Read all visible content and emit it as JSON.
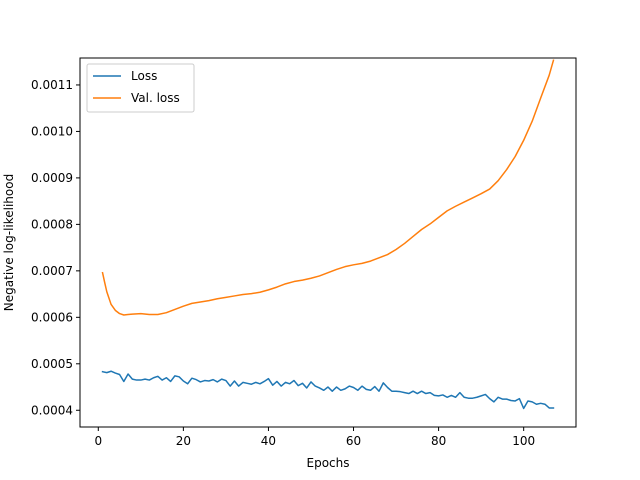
{
  "chart_data": {
    "type": "line",
    "title": "",
    "xlabel": "Epochs",
    "ylabel": "Negative log-likelihood",
    "xlim": [
      -4.3,
      112.3
    ],
    "ylim": [
      0.000364,
      0.001158
    ],
    "x_ticks": [
      0,
      20,
      40,
      60,
      80,
      100
    ],
    "x_tick_labels": [
      "0",
      "20",
      "40",
      "60",
      "80",
      "100"
    ],
    "y_ticks": [
      0.0004,
      0.0005,
      0.0006,
      0.0007,
      0.0008,
      0.0009,
      0.001,
      0.0011
    ],
    "y_tick_labels": [
      "0.0004",
      "0.0005",
      "0.0006",
      "0.0007",
      "0.0008",
      "0.0009",
      "0.0010",
      "0.0011"
    ],
    "grid": false,
    "legend_position": "top-left",
    "series": [
      {
        "name": "Loss",
        "color": "#1f77b4",
        "x": [
          1,
          2,
          3,
          4,
          5,
          6,
          7,
          8,
          9,
          10,
          11,
          12,
          13,
          14,
          15,
          16,
          17,
          18,
          19,
          20,
          21,
          22,
          23,
          24,
          25,
          26,
          27,
          28,
          29,
          30,
          31,
          32,
          33,
          34,
          35,
          36,
          37,
          38,
          39,
          40,
          41,
          42,
          43,
          44,
          45,
          46,
          47,
          48,
          49,
          50,
          51,
          52,
          53,
          54,
          55,
          56,
          57,
          58,
          59,
          60,
          61,
          62,
          63,
          64,
          65,
          66,
          67,
          68,
          69,
          70,
          71,
          72,
          73,
          74,
          75,
          76,
          77,
          78,
          79,
          80,
          81,
          82,
          83,
          84,
          85,
          86,
          87,
          88,
          89,
          90,
          91,
          92,
          93,
          94,
          95,
          96,
          97,
          98,
          99,
          100,
          101,
          102,
          103,
          104,
          105,
          106,
          107
        ],
        "values": [
          0.000483,
          0.000481,
          0.000484,
          0.00048,
          0.000477,
          0.000462,
          0.000478,
          0.000467,
          0.000465,
          0.000465,
          0.000467,
          0.000465,
          0.00047,
          0.000473,
          0.000465,
          0.00047,
          0.000462,
          0.000474,
          0.000472,
          0.000463,
          0.000457,
          0.000469,
          0.000466,
          0.000461,
          0.000464,
          0.000463,
          0.000466,
          0.000461,
          0.000467,
          0.000464,
          0.000452,
          0.000463,
          0.000452,
          0.00046,
          0.000458,
          0.000456,
          0.00046,
          0.000457,
          0.000462,
          0.000468,
          0.000454,
          0.000462,
          0.000452,
          0.00046,
          0.000457,
          0.000464,
          0.000453,
          0.000458,
          0.000448,
          0.000461,
          0.000452,
          0.000448,
          0.000443,
          0.00045,
          0.000441,
          0.00045,
          0.000443,
          0.000446,
          0.000452,
          0.000449,
          0.000443,
          0.000452,
          0.000445,
          0.000443,
          0.000451,
          0.000441,
          0.000459,
          0.000449,
          0.000441,
          0.000441,
          0.00044,
          0.000438,
          0.000436,
          0.000441,
          0.000436,
          0.000441,
          0.000436,
          0.000438,
          0.000432,
          0.000431,
          0.000433,
          0.000428,
          0.000432,
          0.000428,
          0.000438,
          0.000428,
          0.000426,
          0.000426,
          0.000428,
          0.000431,
          0.000434,
          0.000425,
          0.000418,
          0.000428,
          0.000424,
          0.000424,
          0.000421,
          0.00042,
          0.000425,
          0.000404,
          0.00042,
          0.000418,
          0.000413,
          0.000415,
          0.000413,
          0.000405,
          0.000405
        ]
      },
      {
        "name": "Val. loss",
        "color": "#ff7f0e",
        "x": [
          1,
          1.5,
          2,
          3,
          4,
          5,
          6,
          7,
          8,
          10,
          12,
          14,
          16,
          18,
          20,
          22,
          24,
          26,
          28,
          30,
          32,
          34,
          36,
          38,
          40,
          42,
          44,
          46,
          48,
          50,
          52,
          54,
          56,
          58,
          60,
          62,
          64,
          66,
          68,
          70,
          72,
          74,
          76,
          78,
          80,
          82,
          84,
          86,
          88,
          90,
          92,
          94,
          96,
          98,
          100,
          102,
          104,
          106,
          107
        ],
        "values": [
          0.000696,
          0.000675,
          0.000655,
          0.000628,
          0.000615,
          0.000608,
          0.000605,
          0.000606,
          0.000607,
          0.000608,
          0.000606,
          0.000606,
          0.00061,
          0.000617,
          0.000624,
          0.00063,
          0.000633,
          0.000636,
          0.00064,
          0.000643,
          0.000646,
          0.000649,
          0.000651,
          0.000654,
          0.000659,
          0.000665,
          0.000672,
          0.000677,
          0.00068,
          0.000684,
          0.000689,
          0.000696,
          0.000703,
          0.000709,
          0.000713,
          0.000716,
          0.000721,
          0.000728,
          0.000735,
          0.000746,
          0.000759,
          0.000774,
          0.000789,
          0.000801,
          0.000815,
          0.000829,
          0.000839,
          0.000848,
          0.000857,
          0.000866,
          0.000876,
          0.000894,
          0.000918,
          0.000946,
          0.000981,
          0.001022,
          0.001072,
          0.001121,
          0.001153
        ]
      }
    ]
  }
}
